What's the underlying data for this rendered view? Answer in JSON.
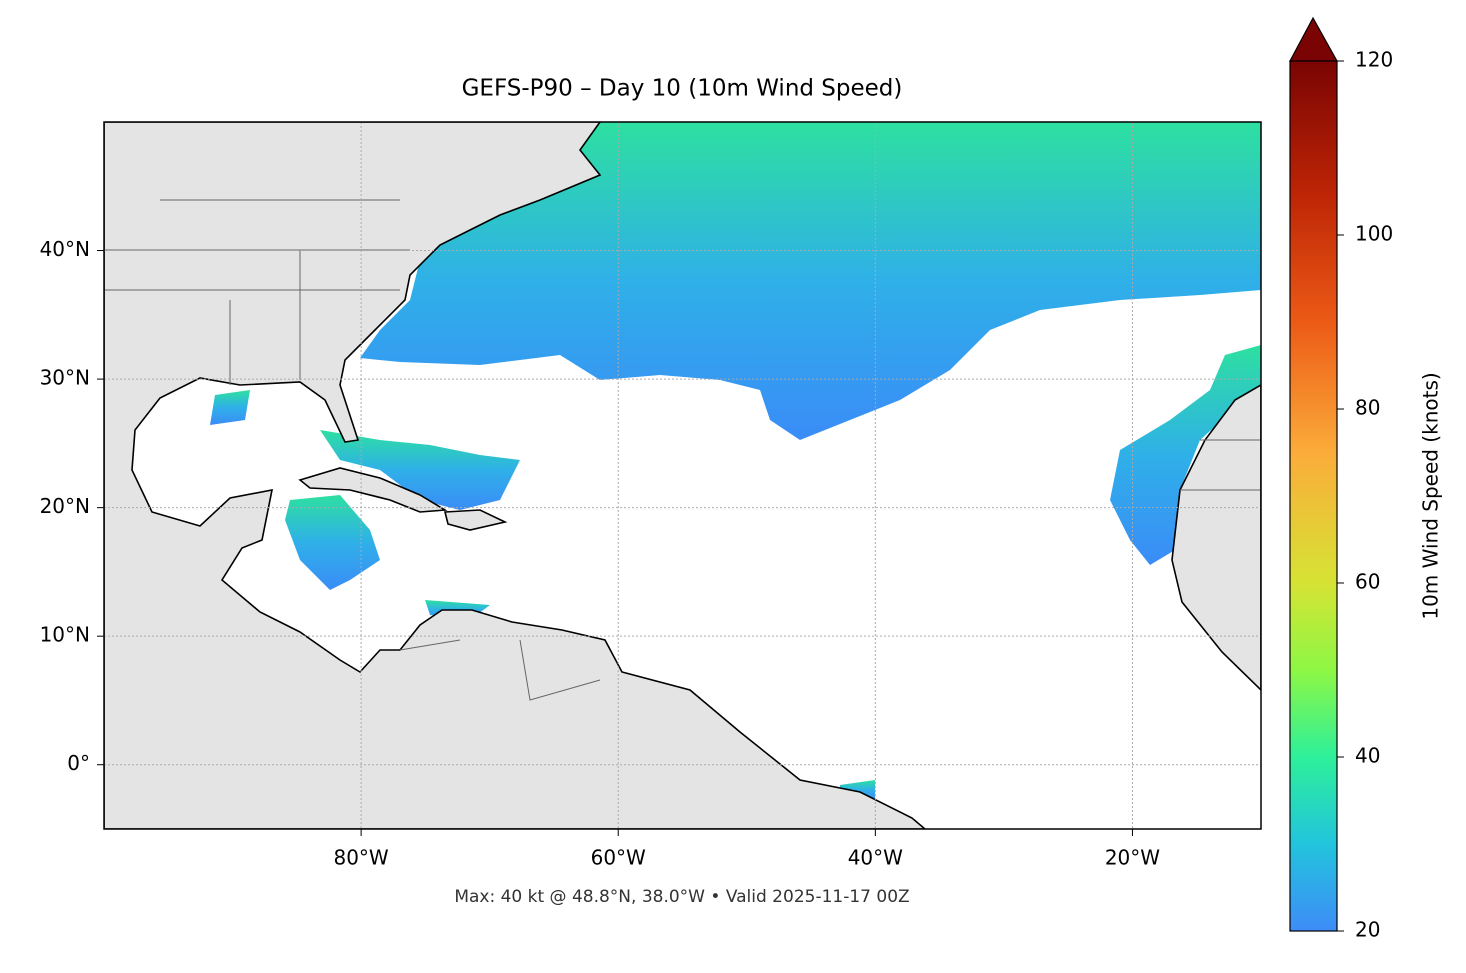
{
  "map": {
    "title": "GEFS-P90 – Day 10 (10m Wind Speed)",
    "footnote": "Max: 40 kt @ 48.8°N, 38.0°W • Valid 2025-11-17 00Z",
    "xlim": [
      -100,
      -10
    ],
    "ylim": [
      -5,
      50
    ],
    "xticks": [
      {
        "value": -80,
        "label": "80°W"
      },
      {
        "value": -60,
        "label": "60°W"
      },
      {
        "value": -40,
        "label": "40°W"
      },
      {
        "value": -20,
        "label": "20°W"
      }
    ],
    "yticks": [
      {
        "value": 0,
        "label": "0°"
      },
      {
        "value": 10,
        "label": "10°N"
      },
      {
        "value": 20,
        "label": "20°N"
      },
      {
        "value": 30,
        "label": "30°N"
      },
      {
        "value": 40,
        "label": "40°N"
      }
    ],
    "colorbar": {
      "label": "10m Wind Speed (knots)",
      "lim": [
        20,
        120
      ],
      "ticks": [
        20,
        40,
        60,
        80,
        100,
        120
      ]
    }
  }
}
